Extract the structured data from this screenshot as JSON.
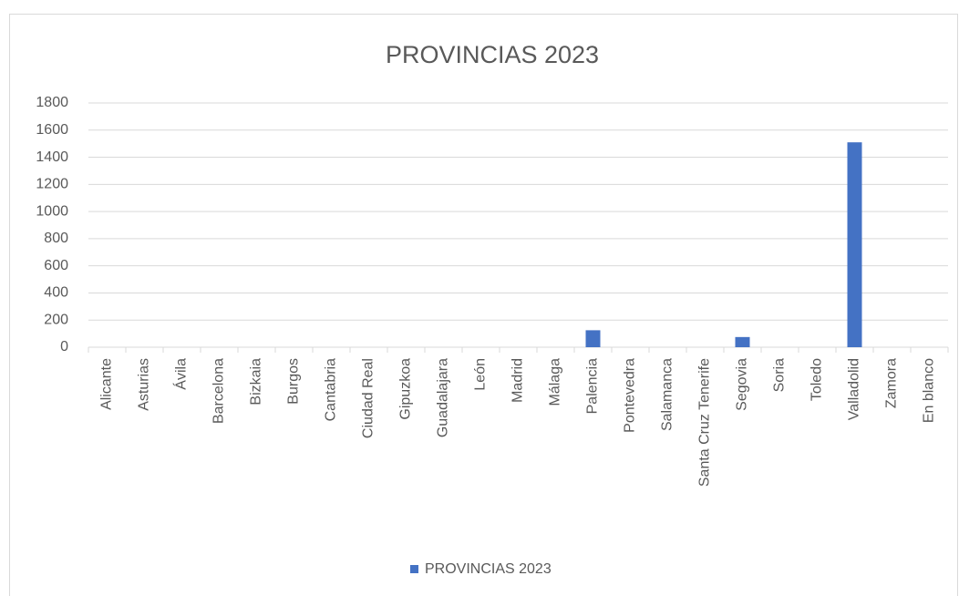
{
  "chart_data": {
    "type": "bar",
    "title": "PROVINCIAS 2023",
    "categories": [
      "Alicante",
      "Asturias",
      "Ávila",
      "Barcelona",
      "Bizkaia",
      "Burgos",
      "Cantabria",
      "Ciudad Real",
      "Gipuzkoa",
      "Guadalajara",
      "León",
      "Madrid",
      "Málaga",
      "Palencia",
      "Pontevedra",
      "Salamanca",
      "Santa Cruz Tenerife",
      "Segovia",
      "Soria",
      "Toledo",
      "Valladolid",
      "Zamora",
      "En blanco"
    ],
    "series": [
      {
        "name": "PROVINCIAS 2023",
        "color": "#4472c4",
        "values": [
          0,
          0,
          0,
          0,
          0,
          0,
          0,
          0,
          0,
          0,
          0,
          0,
          0,
          125,
          0,
          0,
          0,
          75,
          0,
          0,
          1510,
          0,
          0
        ]
      }
    ],
    "ylim": [
      0,
      1800
    ],
    "yticks": [
      0,
      200,
      400,
      600,
      800,
      1000,
      1200,
      1400,
      1600,
      1800
    ],
    "grid": true,
    "legend": "bottom"
  }
}
